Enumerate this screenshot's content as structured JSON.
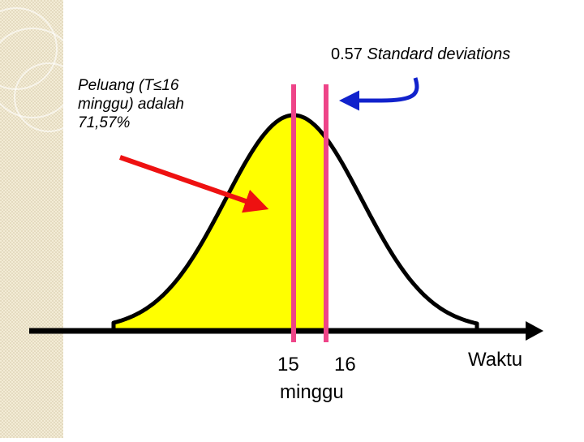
{
  "colors": {
    "curve": "#000000",
    "fill": "#ffff00",
    "marker": "#ee4488",
    "red_arrow": "#ee1111",
    "blue_arrow": "#1122cc",
    "axis": "#000000"
  },
  "annotations": {
    "std_value": "0.57",
    "std_text": "Standard deviations",
    "probability_lines": [
      "Peluang (T≤16",
      "minggu) adalah",
      "71,57%"
    ]
  },
  "axis": {
    "label": "Waktu",
    "unit": "minggu",
    "ticks": [
      "15",
      "16"
    ]
  }
}
